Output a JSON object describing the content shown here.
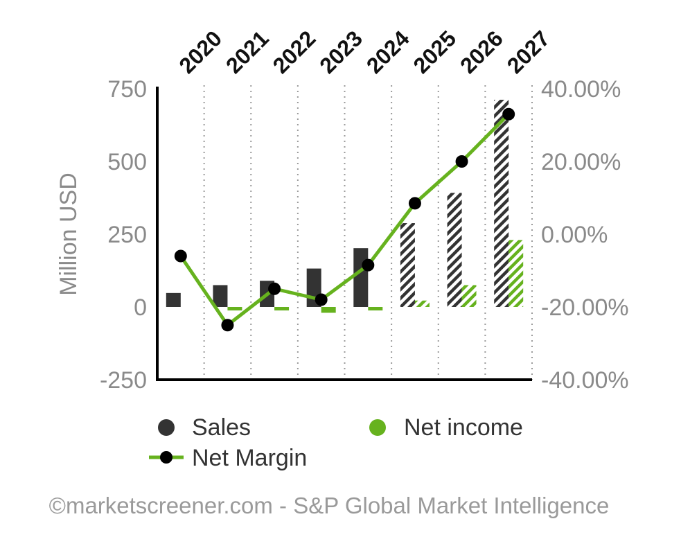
{
  "chart_data": {
    "type": "bar",
    "categories": [
      "2020",
      "2021",
      "2022",
      "2023",
      "2024",
      "2025",
      "2026",
      "2027"
    ],
    "forecast_from": "2025",
    "y_left": {
      "label": "Million USD",
      "ylim": [
        -250,
        750
      ],
      "ticks": [
        "-250",
        "0",
        "250",
        "500",
        "750"
      ],
      "tick_values": [
        -250,
        0,
        250,
        500,
        750
      ]
    },
    "y_right": {
      "ylim": [
        -40,
        40
      ],
      "ticks": [
        "-40.00%",
        "-20.00%",
        "0.00%",
        "20.00%",
        "40.00%"
      ],
      "tick_values": [
        -40,
        -20,
        0,
        20,
        40
      ]
    },
    "series": [
      {
        "name": "Sales",
        "type": "bar",
        "axis": "left",
        "color": "#333333",
        "values": [
          48,
          75,
          90,
          132,
          202,
          288,
          392,
          712
        ]
      },
      {
        "name": "Net income",
        "type": "bar",
        "axis": "left",
        "color": "#66b21e",
        "values": [
          0,
          -12,
          -12,
          -20,
          -12,
          22,
          75,
          230
        ]
      },
      {
        "name": "Net Margin",
        "type": "line",
        "axis": "right",
        "color": "#66b21e",
        "marker_color": "#000000",
        "values": [
          -6,
          -25,
          -15,
          -18,
          -8.5,
          8.5,
          20,
          33
        ]
      }
    ],
    "grid": "vertical dotted",
    "legend_position": "bottom"
  },
  "credit": "©marketscreener.com - S&P Global Market Intelligence"
}
